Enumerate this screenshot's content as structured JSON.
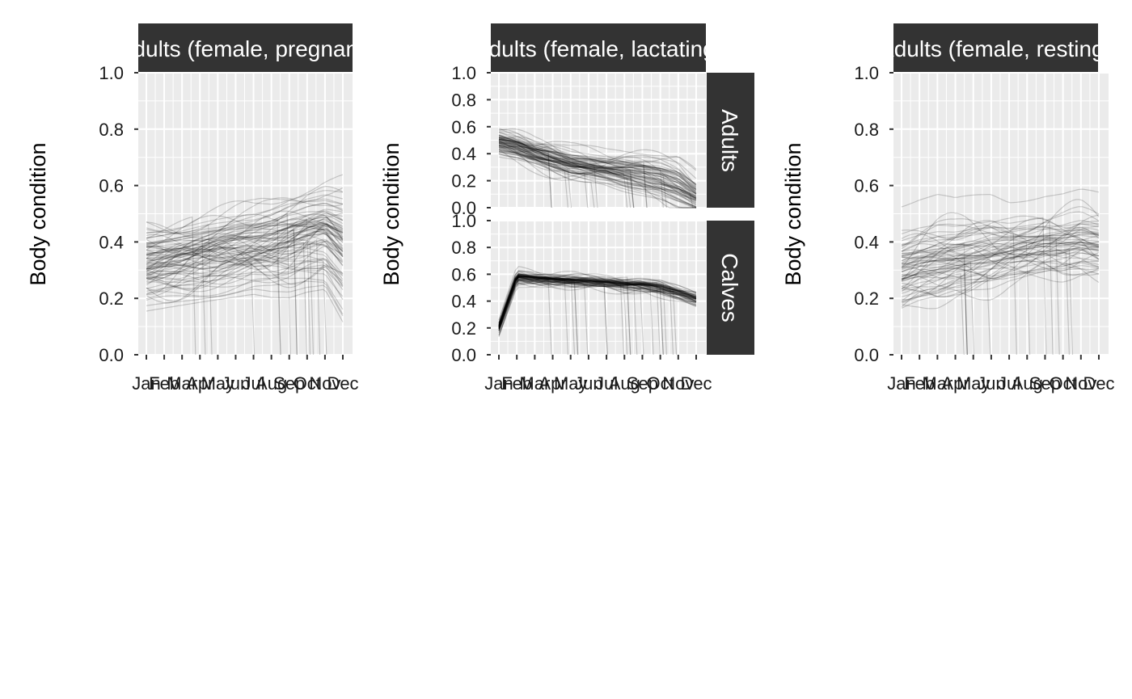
{
  "chart_data": [
    {
      "type": "line",
      "strip_title": "Adults (female, pregnant)",
      "ylabel": "Body condition",
      "ylim": [
        0,
        1
      ],
      "yticks": [
        0.0,
        0.2,
        0.4,
        0.6,
        0.8,
        1.0
      ],
      "ytick_labels": [
        "0.0",
        "0.2",
        "0.4",
        "0.6",
        "0.8",
        "1.0"
      ],
      "x_categories": [
        "Jan",
        "Feb",
        "Mar",
        "Apr",
        "May",
        "Jun",
        "Jul",
        "Aug",
        "Sep",
        "Oct",
        "Nov",
        "Dec"
      ],
      "line_color": "#000000",
      "grid": true,
      "series_summary": {
        "n_lines": 90,
        "mean": [
          0.33,
          0.34,
          0.35,
          0.36,
          0.37,
          0.38,
          0.39,
          0.4,
          0.42,
          0.44,
          0.45,
          0.4
        ],
        "spread": [
          0.08,
          0.08,
          0.08,
          0.08,
          0.08,
          0.08,
          0.08,
          0.09,
          0.1,
          0.1,
          0.1,
          0.13
        ]
      },
      "facets": [
        {
          "label": "",
          "mean": [
            0.33,
            0.34,
            0.35,
            0.36,
            0.37,
            0.38,
            0.39,
            0.4,
            0.42,
            0.44,
            0.45,
            0.4
          ],
          "spread": [
            0.08,
            0.08,
            0.08,
            0.08,
            0.08,
            0.08,
            0.08,
            0.09,
            0.1,
            0.1,
            0.1,
            0.13
          ],
          "n_lines": 90
        }
      ]
    },
    {
      "type": "line",
      "strip_title": "Adults (female, lactating)",
      "ylabel": "Body condition",
      "ylim": [
        0,
        1
      ],
      "yticks": [
        0.0,
        0.2,
        0.4,
        0.6,
        0.8,
        1.0
      ],
      "ytick_labels": [
        "0.0",
        "0.2",
        "0.4",
        "0.6",
        "0.8",
        "1.0"
      ],
      "x_categories": [
        "Jan",
        "Feb",
        "Mar",
        "Apr",
        "May",
        "Jun",
        "Jul",
        "Aug",
        "Sep",
        "Oct",
        "Nov",
        "Dec"
      ],
      "line_color": "#000000",
      "grid": true,
      "facets": [
        {
          "label": "Adults",
          "mean": [
            0.48,
            0.45,
            0.4,
            0.36,
            0.32,
            0.3,
            0.28,
            0.26,
            0.24,
            0.21,
            0.16,
            0.08
          ],
          "spread": [
            0.04,
            0.04,
            0.04,
            0.05,
            0.05,
            0.05,
            0.05,
            0.06,
            0.07,
            0.08,
            0.09,
            0.07
          ],
          "n_lines": 80
        },
        {
          "label": "Calves",
          "mean": [
            0.2,
            0.58,
            0.57,
            0.56,
            0.55,
            0.54,
            0.53,
            0.52,
            0.52,
            0.5,
            0.46,
            0.41
          ],
          "spread": [
            0.01,
            0.01,
            0.01,
            0.01,
            0.01,
            0.01,
            0.01,
            0.01,
            0.01,
            0.02,
            0.02,
            0.02
          ],
          "n_lines": 80
        }
      ]
    },
    {
      "type": "line",
      "strip_title": "Adults (female, resting)",
      "ylabel": "Body condition",
      "ylim": [
        0,
        1
      ],
      "yticks": [
        0.0,
        0.2,
        0.4,
        0.6,
        0.8,
        1.0
      ],
      "ytick_labels": [
        "0.0",
        "0.2",
        "0.4",
        "0.6",
        "0.8",
        "1.0"
      ],
      "x_categories": [
        "Jan",
        "Feb",
        "Mar",
        "Apr",
        "May",
        "Jun",
        "Jul",
        "Aug",
        "Sep",
        "Oct",
        "Nov",
        "Dec"
      ],
      "line_color": "#000000",
      "grid": true,
      "facets": [
        {
          "label": "",
          "mean": [
            0.3,
            0.32,
            0.33,
            0.34,
            0.35,
            0.36,
            0.37,
            0.38,
            0.39,
            0.39,
            0.4,
            0.39
          ],
          "spread": [
            0.08,
            0.08,
            0.08,
            0.07,
            0.07,
            0.07,
            0.06,
            0.06,
            0.06,
            0.06,
            0.06,
            0.06
          ],
          "n_lines": 70
        }
      ]
    }
  ]
}
